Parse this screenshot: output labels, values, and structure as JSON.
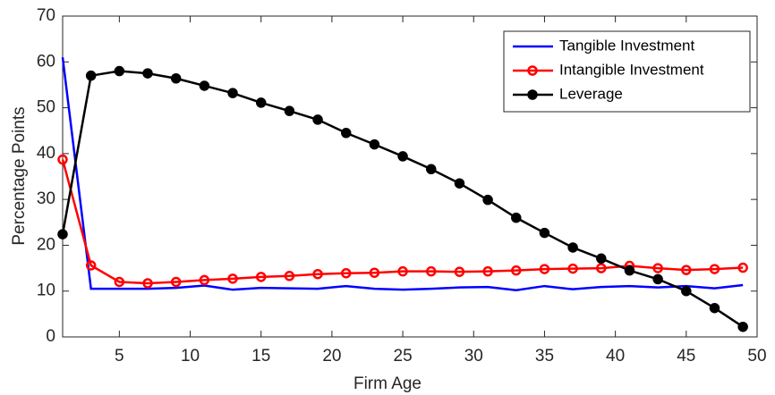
{
  "chart_data": {
    "type": "line",
    "x_label": "Firm Age",
    "y_label": "Percentage Points",
    "x": [
      1,
      3,
      5,
      7,
      9,
      11,
      13,
      15,
      17,
      19,
      21,
      23,
      25,
      27,
      29,
      31,
      33,
      35,
      37,
      39,
      41,
      43,
      45,
      47,
      49
    ],
    "series": [
      {
        "name": "Tangible Investment",
        "color": "#0000ff",
        "values": [
          61,
          10.5,
          10.5,
          10.5,
          10.7,
          11.2,
          10.3,
          10.7,
          10.6,
          10.5,
          11.1,
          10.5,
          10.3,
          10.5,
          10.8,
          10.9,
          10.2,
          11.1,
          10.4,
          10.9,
          11.1,
          10.8,
          11.1,
          10.6,
          11.3
        ]
      },
      {
        "name": "Intangible Investment",
        "color": "#ff0000",
        "marker": "open-circle",
        "values": [
          38.7,
          15.6,
          12.0,
          11.7,
          12.0,
          12.4,
          12.7,
          13.1,
          13.3,
          13.7,
          13.9,
          14.0,
          14.3,
          14.3,
          14.2,
          14.3,
          14.5,
          14.8,
          14.9,
          15.0,
          15.5,
          15.0,
          14.6,
          14.8,
          15.1
        ]
      },
      {
        "name": "Leverage",
        "color": "#000000",
        "marker": "filled-circle",
        "values": [
          22.4,
          57,
          58,
          57.5,
          56.4,
          54.8,
          53.2,
          51.1,
          49.3,
          47.4,
          44.5,
          42,
          39.4,
          36.6,
          33.5,
          29.9,
          26.0,
          22.7,
          19.5,
          17.1,
          14.5,
          12.6,
          10.0,
          6.3,
          2.2
        ]
      }
    ],
    "xlim": [
      1,
      50
    ],
    "xticks": [
      5,
      10,
      15,
      20,
      25,
      30,
      35,
      40,
      45,
      50
    ],
    "ylim": [
      0,
      70
    ],
    "yticks": [
      0,
      10,
      20,
      30,
      40,
      50,
      60,
      70
    ],
    "legend": "upper right"
  }
}
